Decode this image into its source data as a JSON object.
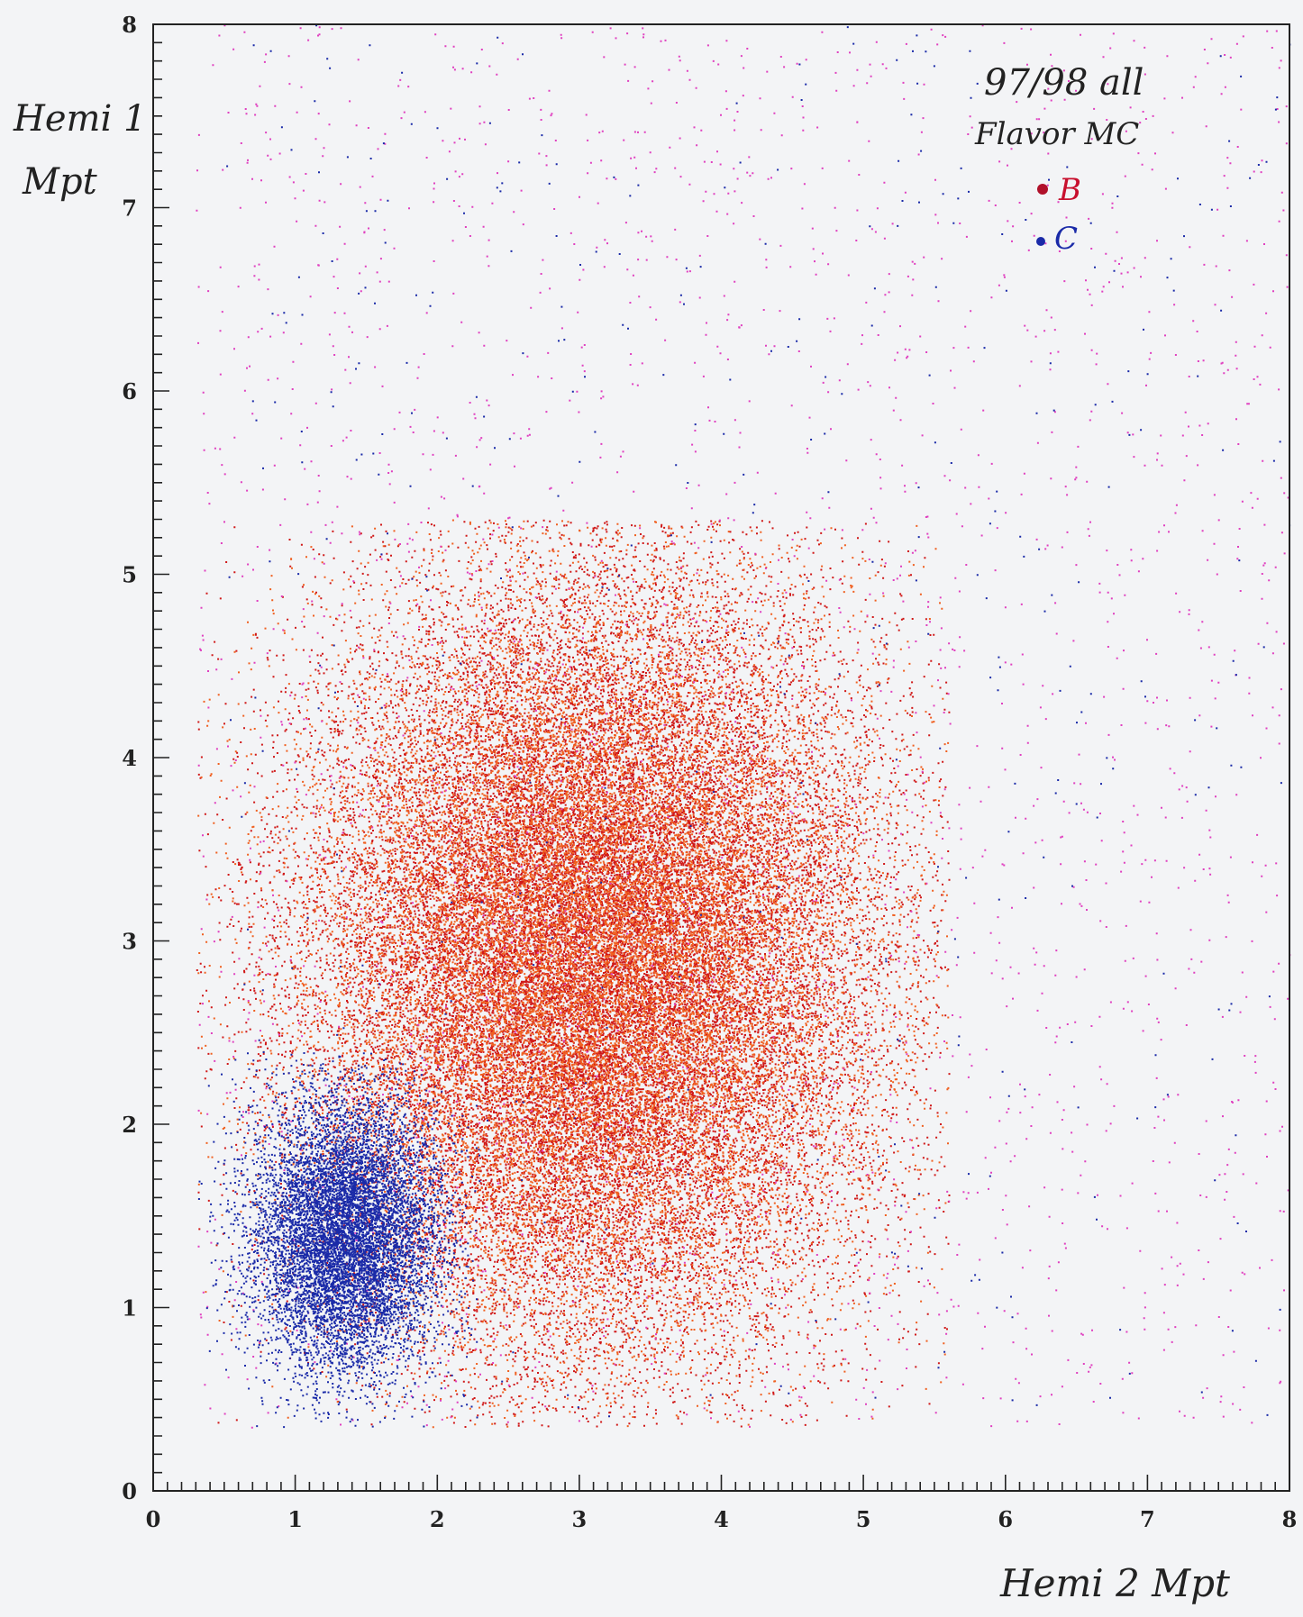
{
  "chart_data": {
    "type": "scatter",
    "title": "",
    "xlabel": "Hemi 2  Mpt",
    "ylabel_line1": "Hemi 1",
    "ylabel_line2": "Mpt",
    "xlim": [
      0,
      8
    ],
    "ylim": [
      0,
      8
    ],
    "x_ticks": [
      "0",
      "1",
      "2",
      "3",
      "4",
      "5",
      "6",
      "7",
      "8"
    ],
    "y_ticks": [
      "0",
      "1",
      "2",
      "3",
      "4",
      "5",
      "6",
      "7",
      "8"
    ],
    "grid": false,
    "annotation_line1": "97/98 all",
    "annotation_line2": "Flavor MC",
    "legend_position": "top-right",
    "series": [
      {
        "name": "B",
        "color": "#d01818",
        "color_alt": "#f06020",
        "color_sparse": "#e040c0",
        "distribution": {
          "center_x": 3.1,
          "center_y": 2.9,
          "spread_x": 1.0,
          "spread_y": 1.05,
          "x_range": [
            0.3,
            5.6
          ],
          "y_range": [
            0.35,
            5.3
          ],
          "approx_points": 52000
        },
        "sparse_range": {
          "x": [
            0.3,
            8.0
          ],
          "y": [
            0.35,
            8.0
          ],
          "approx_points": 2500
        }
      },
      {
        "name": "C",
        "color": "#1a2aa8",
        "distribution": {
          "center_x": 1.35,
          "center_y": 1.4,
          "spread_x": 0.33,
          "spread_y": 0.38,
          "x_range": [
            0.3,
            2.3
          ],
          "y_range": [
            0.35,
            2.4
          ],
          "approx_points": 9000
        },
        "sparse_range": {
          "x": [
            0.5,
            8.0
          ],
          "y": [
            0.4,
            8.0
          ],
          "approx_points": 500
        }
      }
    ]
  }
}
